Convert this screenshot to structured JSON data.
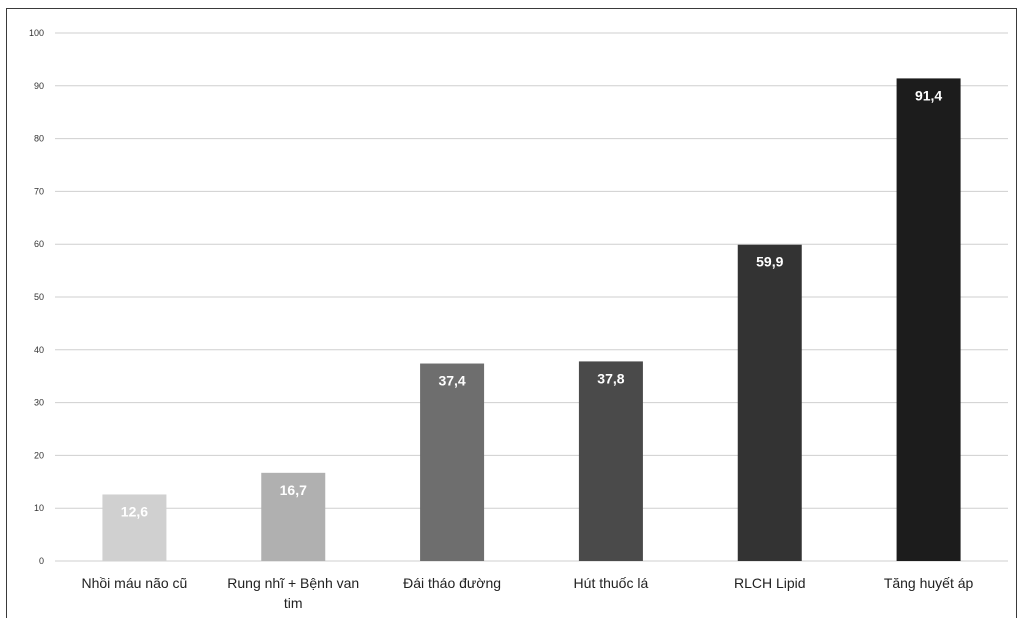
{
  "chart_data": {
    "type": "bar",
    "categories": [
      [
        "Nhồi máu não cũ"
      ],
      [
        "Rung nhĩ + Bệnh van",
        "tim"
      ],
      [
        "Đái tháo đường"
      ],
      [
        "Hút thuốc lá"
      ],
      [
        "RLCH Lipid"
      ],
      [
        "Tăng huyết áp"
      ]
    ],
    "values": [
      12.6,
      16.7,
      37.4,
      37.8,
      59.9,
      91.4
    ],
    "data_labels": [
      "12,6",
      "16,7",
      "37,4",
      "37,8",
      "59,9",
      "91,4"
    ],
    "bar_colors": [
      "#d0d0d0",
      "#b0b0b0",
      "#6e6e6e",
      "#4a4a4a",
      "#333333",
      "#1c1c1c"
    ],
    "yticks": [
      "0",
      "10",
      "20",
      "30",
      "40",
      "50",
      "60",
      "70",
      "80",
      "90",
      "100"
    ],
    "ylim": [
      0,
      100
    ],
    "grid": true,
    "legend": "none"
  }
}
